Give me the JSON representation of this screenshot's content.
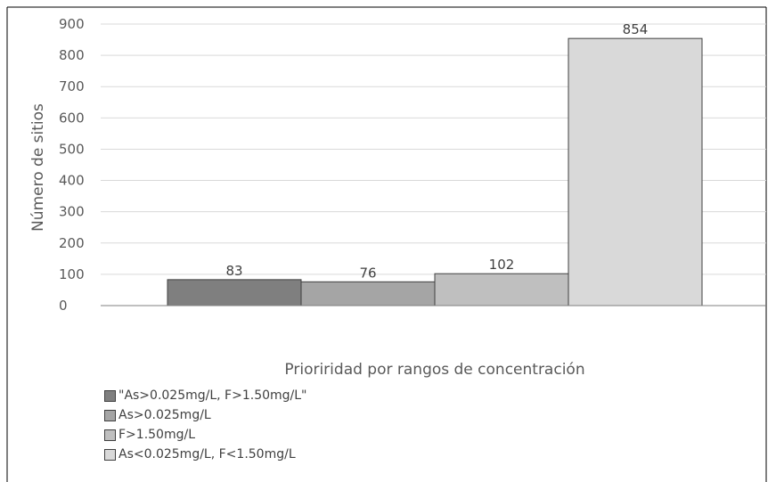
{
  "chart_data": {
    "type": "bar",
    "title": "",
    "xlabel": "Prioriridad por rangos de concentración",
    "ylabel": "Número de sitios",
    "ylim": [
      0,
      900
    ],
    "yticks": [
      0,
      100,
      200,
      300,
      400,
      500,
      600,
      700,
      800,
      900
    ],
    "grid": true,
    "legend_position": "bottom-left",
    "series": [
      {
        "name": "\"As>0.025mg/L, F>1.50mg/L\"",
        "values": [
          83
        ],
        "color": "#7f7f7f"
      },
      {
        "name": "As>0.025mg/L",
        "values": [
          76
        ],
        "color": "#a5a5a5"
      },
      {
        "name": "F>1.50mg/L",
        "values": [
          102
        ],
        "color": "#bfbfbf"
      },
      {
        "name": "As<0.025mg/L, F<1.50mg/L",
        "values": [
          854
        ],
        "color": "#d9d9d9"
      }
    ]
  }
}
